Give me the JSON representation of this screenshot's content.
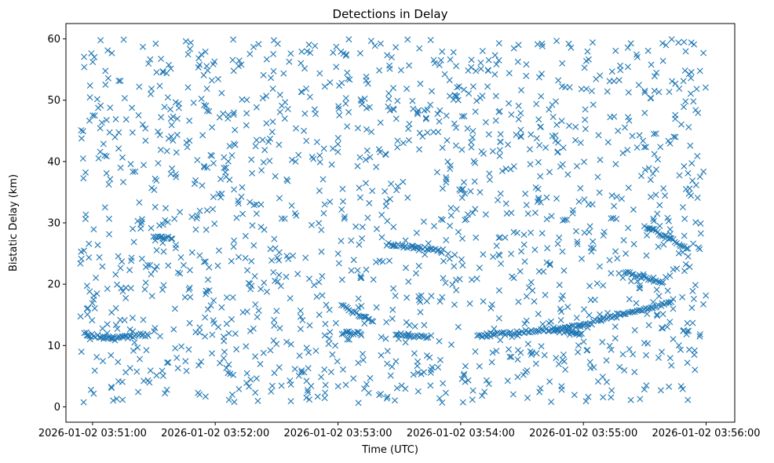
{
  "chart_data": {
    "type": "scatter",
    "title": "Detections in Delay",
    "xlabel": "Time (UTC)",
    "ylabel": "Bistatic Delay (km)",
    "marker": "x",
    "color": "#1f77b4",
    "grid": false,
    "legend": "none",
    "xlim": [
      "2026-01-02 03:50:47",
      "2026-01-02 03:56:14"
    ],
    "ylim": [
      -2.5,
      62.5
    ],
    "x_ticks": [
      "2026-01-02 03:51:00",
      "2026-01-02 03:52:00",
      "2026-01-02 03:53:00",
      "2026-01-02 03:54:00",
      "2026-01-02 03:55:00",
      "2026-01-02 03:56:00"
    ],
    "y_ticks": [
      "0",
      "10",
      "20",
      "30",
      "40",
      "50",
      "60"
    ],
    "x_range_data": [
      "2026-01-02 03:50:54",
      "2026-01-02 03:56:00"
    ],
    "y_range_data": [
      0.5,
      60
    ],
    "noise_detection_count": 1500,
    "tracks": [
      {
        "points": [
          [
            "2026-01-02 03:50:56",
            12.0
          ],
          [
            "2026-01-02 03:51:09",
            11.0
          ],
          [
            "2026-01-02 03:51:25",
            11.8
          ],
          [
            "2026-01-02 03:51:28",
            11.6
          ]
        ]
      },
      {
        "points": [
          [
            "2026-01-02 03:51:30",
            27.8
          ],
          [
            "2026-01-02 03:51:40",
            27.5
          ]
        ]
      },
      {
        "points": [
          [
            "2026-01-02 03:53:02",
            12.0
          ],
          [
            "2026-01-02 03:53:12",
            12.0
          ]
        ]
      },
      {
        "points": [
          [
            "2026-01-02 03:53:02",
            16.5
          ],
          [
            "2026-01-02 03:53:10",
            15.0
          ],
          [
            "2026-01-02 03:53:18",
            14.0
          ]
        ]
      },
      {
        "points": [
          [
            "2026-01-02 03:53:24",
            26.5
          ],
          [
            "2026-01-02 03:53:45",
            25.8
          ],
          [
            "2026-01-02 03:53:52",
            25.5
          ]
        ]
      },
      {
        "points": [
          [
            "2026-01-02 03:53:28",
            11.8
          ],
          [
            "2026-01-02 03:53:45",
            11.3
          ]
        ]
      },
      {
        "points": [
          [
            "2026-01-02 03:54:08",
            11.5
          ],
          [
            "2026-01-02 03:54:20",
            11.9
          ],
          [
            "2026-01-02 03:54:40",
            12.5
          ],
          [
            "2026-01-02 03:55:05",
            13.5
          ]
        ]
      },
      {
        "points": [
          [
            "2026-01-02 03:54:45",
            12.5
          ],
          [
            "2026-01-02 03:55:00",
            12.0
          ]
        ]
      },
      {
        "points": [
          [
            "2026-01-02 03:55:05",
            14.0
          ],
          [
            "2026-01-02 03:55:20",
            15.3
          ],
          [
            "2026-01-02 03:55:35",
            16.2
          ],
          [
            "2026-01-02 03:55:45",
            17.5
          ]
        ]
      },
      {
        "points": [
          [
            "2026-01-02 03:55:20",
            22.0
          ],
          [
            "2026-01-02 03:55:30",
            21.0
          ],
          [
            "2026-01-02 03:55:40",
            20.2
          ]
        ]
      },
      {
        "points": [
          [
            "2026-01-02 03:55:30",
            29.5
          ],
          [
            "2026-01-02 03:55:45",
            27.0
          ],
          [
            "2026-01-02 03:55:52",
            25.5
          ]
        ]
      }
    ]
  }
}
